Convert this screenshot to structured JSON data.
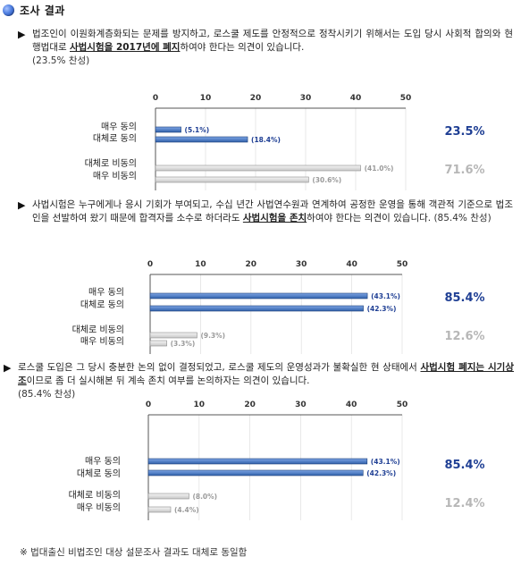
{
  "header": {
    "title": "조사 결과"
  },
  "sections": [
    {
      "text_before": "법조인이 이원화계층화되는 문제를 방지하고, 로스쿨 제도를 안정적으로 정착시키기 위해서는 도입 당시 사회적 합의와 현행법대로 ",
      "text_emphasis": "사법시험을 2017년에 폐지",
      "text_after": "하여야 한다는 의견이 있습니다.",
      "support": "(23.5% 찬성)"
    },
    {
      "text_before": "사법시험은 누구에게나 응시 기회가 부여되고, 수십 년간 사법연수원과 연계하여 공정한 운영을 통해 객관적 기준으로 법조인을 선발하여 왔기 때문에 합격자를 소수로 하더라도 ",
      "text_emphasis": "사법시험을 존치",
      "text_after": "하여야 한다는 의견이 있습니다.",
      "support": "(85.4% 찬성)"
    },
    {
      "text_before": "로스쿨 도입은 그 당시 충분한 논의 없이 결정되었고, 로스쿨 제도의 운영성과가 불확실한 현 상태에서 ",
      "text_emphasis": "사법시험 폐지는 시기상조",
      "text_after": "이므로 좀 더 실시해본 뒤 계속 존치 여부를 논의하자는 의견이 있습니다.",
      "support": "(85.4% 찬성)"
    }
  ],
  "footer": "※ 법대출신 비법조인 대상 설문조사 결과도 대체로 동일함",
  "colors": {
    "agree_bar": "#2f5fa8",
    "disagree_bar": "#c8c8c8",
    "agree_total": "#1f3f94",
    "disagree_total": "#b7b7b7"
  },
  "chart_data": [
    {
      "type": "bar",
      "orientation": "horizontal",
      "xlim": [
        0,
        50
      ],
      "ticks": [
        "0",
        "10",
        "20",
        "30",
        "40",
        "50"
      ],
      "groups": [
        {
          "labels": [
            "매우 동의",
            "대체로 동의"
          ],
          "values": [
            5.1,
            18.4
          ],
          "value_labels": [
            "(5.1%)",
            "(18.4%)"
          ],
          "total": "23.5%",
          "kind": "agree"
        },
        {
          "labels": [
            "대체로 비동의",
            "매우 비동의"
          ],
          "values": [
            41.0,
            30.6
          ],
          "value_labels": [
            "(41.0%)",
            "(30.6%)"
          ],
          "total": "71.6%",
          "kind": "disagree"
        }
      ]
    },
    {
      "type": "bar",
      "orientation": "horizontal",
      "xlim": [
        0,
        50
      ],
      "ticks": [
        "0",
        "10",
        "20",
        "30",
        "40",
        "50"
      ],
      "groups": [
        {
          "labels": [
            "매우 동의",
            "대체로 동의"
          ],
          "values": [
            43.1,
            42.3
          ],
          "value_labels": [
            "(43.1%)",
            "(42.3%)"
          ],
          "total": "85.4%",
          "kind": "agree"
        },
        {
          "labels": [
            "대체로 비동의",
            "매우 비동의"
          ],
          "values": [
            9.3,
            3.3
          ],
          "value_labels": [
            "(9.3%)",
            "(3.3%)"
          ],
          "total": "12.6%",
          "kind": "disagree"
        }
      ]
    },
    {
      "type": "bar",
      "orientation": "horizontal",
      "xlim": [
        0,
        50
      ],
      "ticks": [
        "0",
        "10",
        "20",
        "30",
        "40",
        "50"
      ],
      "groups": [
        {
          "labels": [
            "매우 동의",
            "대체로 동의"
          ],
          "values": [
            43.1,
            42.3
          ],
          "value_labels": [
            "(43.1%)",
            "(42.3%)"
          ],
          "total": "85.4%",
          "kind": "agree"
        },
        {
          "labels": [
            "대체로 비동의",
            "매우 비동의"
          ],
          "values": [
            8.0,
            4.4
          ],
          "value_labels": [
            "(8.0%)",
            "(4.4%)"
          ],
          "total": "12.4%",
          "kind": "disagree"
        }
      ]
    }
  ]
}
